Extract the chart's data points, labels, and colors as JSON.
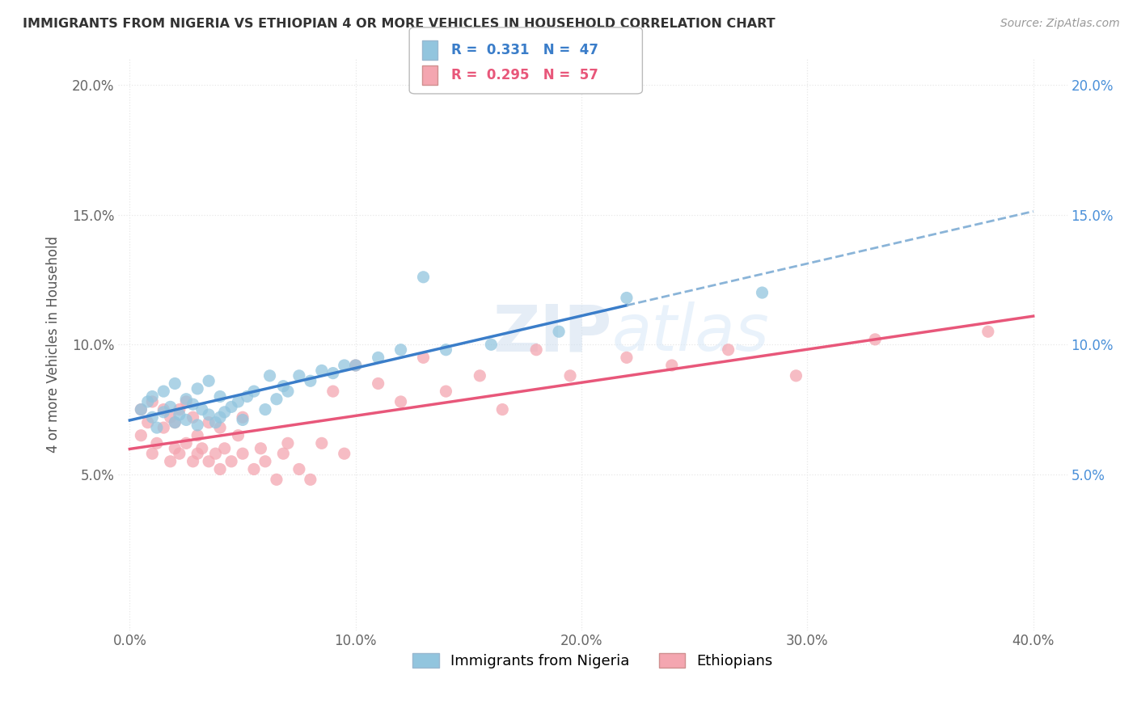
{
  "title": "IMMIGRANTS FROM NIGERIA VS ETHIOPIAN 4 OR MORE VEHICLES IN HOUSEHOLD CORRELATION CHART",
  "source": "Source: ZipAtlas.com",
  "ylabel": "4 or more Vehicles in Household",
  "xlim": [
    -0.005,
    0.415
  ],
  "ylim": [
    -0.01,
    0.21
  ],
  "xtick_labels": [
    "0.0%",
    "10.0%",
    "20.0%",
    "30.0%",
    "40.0%"
  ],
  "xtick_vals": [
    0.0,
    0.1,
    0.2,
    0.3,
    0.4
  ],
  "ytick_labels": [
    "5.0%",
    "10.0%",
    "15.0%",
    "20.0%"
  ],
  "ytick_vals": [
    0.05,
    0.1,
    0.15,
    0.2
  ],
  "nigeria_R": 0.331,
  "nigeria_N": 47,
  "ethiopian_R": 0.295,
  "ethiopian_N": 57,
  "nigeria_color": "#92c5de",
  "ethiopian_color": "#f4a6b0",
  "nigeria_line_color": "#3a7dc9",
  "nigeria_line_color2": "#8ab4d8",
  "ethiopian_line_color": "#e8577a",
  "background_color": "#ffffff",
  "grid_color": "#e8e8e8",
  "nigeria_scatter_x": [
    0.005,
    0.008,
    0.01,
    0.01,
    0.012,
    0.015,
    0.015,
    0.018,
    0.02,
    0.02,
    0.022,
    0.025,
    0.025,
    0.028,
    0.03,
    0.03,
    0.032,
    0.035,
    0.035,
    0.038,
    0.04,
    0.04,
    0.042,
    0.045,
    0.048,
    0.05,
    0.052,
    0.055,
    0.06,
    0.062,
    0.065,
    0.068,
    0.07,
    0.075,
    0.08,
    0.085,
    0.09,
    0.095,
    0.1,
    0.11,
    0.12,
    0.14,
    0.16,
    0.19,
    0.22,
    0.28,
    0.13
  ],
  "nigeria_scatter_y": [
    0.075,
    0.078,
    0.072,
    0.08,
    0.068,
    0.074,
    0.082,
    0.076,
    0.07,
    0.085,
    0.073,
    0.071,
    0.079,
    0.077,
    0.069,
    0.083,
    0.075,
    0.073,
    0.086,
    0.07,
    0.072,
    0.08,
    0.074,
    0.076,
    0.078,
    0.071,
    0.08,
    0.082,
    0.075,
    0.088,
    0.079,
    0.084,
    0.082,
    0.088,
    0.086,
    0.09,
    0.089,
    0.092,
    0.092,
    0.095,
    0.098,
    0.098,
    0.1,
    0.105,
    0.118,
    0.12,
    0.126
  ],
  "ethiopian_scatter_x": [
    0.005,
    0.005,
    0.008,
    0.01,
    0.01,
    0.012,
    0.015,
    0.015,
    0.018,
    0.018,
    0.02,
    0.02,
    0.022,
    0.022,
    0.025,
    0.025,
    0.028,
    0.028,
    0.03,
    0.03,
    0.032,
    0.035,
    0.035,
    0.038,
    0.04,
    0.04,
    0.042,
    0.045,
    0.048,
    0.05,
    0.05,
    0.055,
    0.058,
    0.06,
    0.065,
    0.068,
    0.07,
    0.075,
    0.08,
    0.085,
    0.09,
    0.095,
    0.1,
    0.11,
    0.12,
    0.13,
    0.14,
    0.155,
    0.165,
    0.18,
    0.195,
    0.22,
    0.24,
    0.265,
    0.295,
    0.33,
    0.38
  ],
  "ethiopian_scatter_y": [
    0.065,
    0.075,
    0.07,
    0.058,
    0.078,
    0.062,
    0.068,
    0.075,
    0.055,
    0.072,
    0.06,
    0.07,
    0.058,
    0.075,
    0.062,
    0.078,
    0.055,
    0.072,
    0.058,
    0.065,
    0.06,
    0.055,
    0.07,
    0.058,
    0.052,
    0.068,
    0.06,
    0.055,
    0.065,
    0.058,
    0.072,
    0.052,
    0.06,
    0.055,
    0.048,
    0.058,
    0.062,
    0.052,
    0.048,
    0.062,
    0.082,
    0.058,
    0.092,
    0.085,
    0.078,
    0.095,
    0.082,
    0.088,
    0.075,
    0.098,
    0.088,
    0.095,
    0.092,
    0.098,
    0.088,
    0.102,
    0.105
  ],
  "legend_nigeria_text": "R =  0.331   N =  47",
  "legend_ethiopian_text": "R =  0.295   N =  57",
  "legend_nigeria_label": "Immigrants from Nigeria",
  "legend_ethiopian_label": "Ethiopians"
}
